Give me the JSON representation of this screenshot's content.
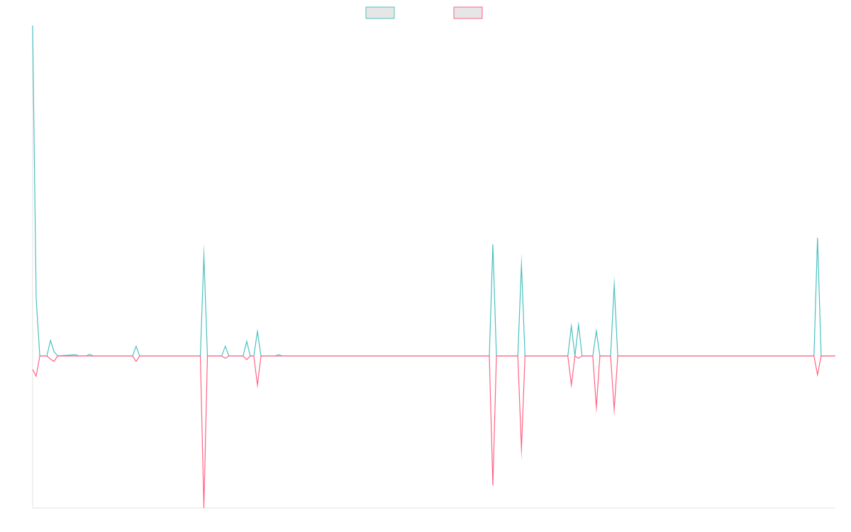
{
  "chart_data": {
    "type": "line",
    "title": "",
    "xlabel": "",
    "ylabel": "",
    "legend": {
      "placement": "top-center",
      "entries": [
        {
          "color": "#4bc0c0",
          "fill": "#e6e6e6",
          "label": ""
        },
        {
          "color": "#ff6384",
          "fill": "#e6e6e6",
          "label": ""
        }
      ]
    },
    "grid": false,
    "x_count": 216,
    "ylim": [
      -34,
      74
    ],
    "zero_line": true,
    "series": [
      {
        "color": "#4bc0c0",
        "points": [
          [
            0,
            74
          ],
          [
            1,
            13
          ],
          [
            2,
            0
          ],
          [
            3,
            0
          ],
          [
            4,
            0
          ],
          [
            5,
            3.5
          ],
          [
            6,
            1
          ],
          [
            7,
            0
          ],
          [
            12,
            0.3
          ],
          [
            13,
            0
          ],
          [
            15,
            0
          ],
          [
            16,
            0.4
          ],
          [
            17,
            0
          ],
          [
            18,
            0
          ],
          [
            19,
            0
          ],
          [
            28,
            0
          ],
          [
            29,
            2.2
          ],
          [
            30,
            0
          ],
          [
            47,
            0
          ],
          [
            48,
            22.5
          ],
          [
            49,
            0
          ],
          [
            53,
            0
          ],
          [
            54,
            2.2
          ],
          [
            55,
            0
          ],
          [
            59,
            0
          ],
          [
            60,
            3.3
          ],
          [
            61,
            0
          ],
          [
            62,
            0
          ],
          [
            63,
            5.5
          ],
          [
            64,
            0
          ],
          [
            68,
            0
          ],
          [
            69,
            0.3
          ],
          [
            70,
            0
          ],
          [
            128,
            0
          ],
          [
            129,
            25
          ],
          [
            130,
            0
          ],
          [
            136,
            0
          ],
          [
            137,
            20.5
          ],
          [
            138,
            0
          ],
          [
            150,
            0
          ],
          [
            151,
            6.7
          ],
          [
            152,
            0
          ],
          [
            153,
            7
          ],
          [
            154,
            0
          ],
          [
            157,
            0
          ],
          [
            158,
            5.6
          ],
          [
            159,
            0
          ],
          [
            162,
            0
          ],
          [
            163,
            16
          ],
          [
            164,
            0
          ],
          [
            219,
            0
          ],
          [
            220,
            26.5
          ],
          [
            221,
            0
          ],
          [
            225,
            0
          ]
        ]
      },
      {
        "color": "#ff6384",
        "points": [
          [
            0,
            -3
          ],
          [
            1,
            -4.5
          ],
          [
            2,
            0
          ],
          [
            3,
            0
          ],
          [
            4,
            0
          ],
          [
            5,
            -0.7
          ],
          [
            6,
            -1.2
          ],
          [
            7,
            0
          ],
          [
            12,
            0
          ],
          [
            13,
            0
          ],
          [
            15,
            0
          ],
          [
            16,
            0
          ],
          [
            17,
            0
          ],
          [
            18,
            0
          ],
          [
            19,
            0
          ],
          [
            28,
            0
          ],
          [
            29,
            -1.2
          ],
          [
            30,
            0
          ],
          [
            47,
            0
          ],
          [
            48,
            -34
          ],
          [
            49,
            0
          ],
          [
            53,
            0
          ],
          [
            54,
            -0.5
          ],
          [
            55,
            0
          ],
          [
            59,
            0
          ],
          [
            60,
            -0.8
          ],
          [
            61,
            0
          ],
          [
            62,
            0
          ],
          [
            63,
            -6.5
          ],
          [
            64,
            0
          ],
          [
            68,
            0
          ],
          [
            69,
            0
          ],
          [
            70,
            0
          ],
          [
            128,
            0
          ],
          [
            129,
            -29
          ],
          [
            130,
            0
          ],
          [
            136,
            0
          ],
          [
            137,
            -20.8
          ],
          [
            138,
            0
          ],
          [
            150,
            0
          ],
          [
            151,
            -6.5
          ],
          [
            152,
            0
          ],
          [
            153,
            -0.5
          ],
          [
            154,
            0
          ],
          [
            157,
            0
          ],
          [
            158,
            -11.5
          ],
          [
            159,
            0
          ],
          [
            162,
            0
          ],
          [
            163,
            -12
          ],
          [
            164,
            0
          ],
          [
            219,
            0
          ],
          [
            220,
            -4.2
          ],
          [
            221,
            0
          ],
          [
            225,
            0
          ]
        ]
      }
    ]
  }
}
